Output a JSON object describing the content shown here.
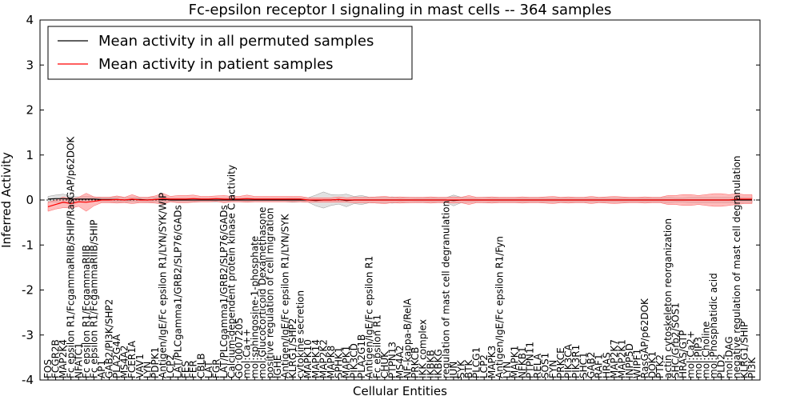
{
  "chart_data": {
    "type": "line",
    "title": "Fc-epsilon receptor I signaling in mast cells -- 364 samples",
    "xlabel": "Cellular Entities",
    "ylabel": "Inferred Activity",
    "ylim": [
      -4,
      4
    ],
    "yticks": [
      -4,
      -3,
      -2,
      -1,
      0,
      1,
      2,
      3,
      4
    ],
    "legend_position": "top-left",
    "categories": [
      "FOS",
      "FCGR2B",
      "MAP2K4",
      "Fc epsilon R1/FcgammaRIIB/SHIP/RasGAP/p62DOK",
      "NFATC1",
      "Fc epsilon R1/FcgammaRIIB",
      "Fc epsilon R1/FcgammaRIIB/SHIP",
      "AP1",
      "GAB2/PI3K/SHP2",
      "PLA2G4A",
      "MS4A2",
      "FCER1A",
      "VAV1",
      "LYN",
      "PDPK1",
      "Antigen/IgE/Fc epsilon R1/LYN/SYK/WIP",
      "LCP2",
      "LAT/PLCgamma1/GRB2/SLP76/GADs",
      "FES",
      "FER",
      "CBLB",
      "LAT",
      "FGR",
      "LAT/PLCgamma1/GRB2/SLP76/GADs",
      "Calcium-dependent protein kinase C activity",
      "GO:0007205",
      "mol:Ca++",
      "mol:sphingosine-1-phosphate",
      "mol:Glucocorticoid Dexamethasone",
      "positive regulation of cell migration",
      "IGHE",
      "Antigen/IgE/Fc epsilon R1/LYN/SYK",
      "KLRG1/SHP2",
      "cytokine secretion",
      "MAPK10",
      "MAPK14",
      "MAP2K2",
      "MAPK8",
      "SPHK1",
      "MAPK1",
      "PIK3CD",
      "PLA2G1B",
      "Antigen/IgE/Fc epsilon R1",
      "Fc epsilon R1",
      "CHUK",
      "PTPN13",
      "MS4A2",
      "NF-kappa-B/RelA",
      "PRKCB",
      "IKK complex",
      "IKBKB",
      "IKBKG",
      "regulation of mast cell degranulation",
      "JUN",
      "SYK",
      "BTK",
      "PLCG1",
      "LCP2",
      "MAPK3",
      "Antigen/IgE/Fc epsilon R1/Fyn",
      "LYN",
      "MAPK1",
      "NFKB1",
      "PTPN11",
      "RELA",
      "SOS1",
      "FYN",
      "PRKCE",
      "PIK3CA",
      "PIK3R1",
      "SHC1",
      "GAB2",
      "RAF1",
      "HRAS",
      "MAP2K7",
      "MAP2K1",
      "INPP5D",
      "WIPF1",
      "RasGAP/p62DOK",
      "DOK1",
      "PTK2",
      "actin cytoskeleton reorganization",
      "SHC/Grb2/SOS1",
      "HRAS/GTP",
      "mol:Ca2+",
      "mol:PIP3",
      "mol:Choline",
      "mol:Phosphatidic acid",
      "PLD2",
      "mol:DAG",
      "negative regulation of mast cell degranulation",
      "KLRG1/SHIP",
      "PI3K"
    ],
    "series": [
      {
        "name": "Mean activity in all permuted samples",
        "color": "#000000",
        "mean": [
          0.02,
          0.03,
          0.03,
          0.02,
          0.02,
          0.02,
          0.02,
          0.01,
          0.01,
          0.01,
          0.0,
          0.01,
          0.01,
          0.0,
          0.01,
          0.02,
          0.0,
          0.0,
          0.0,
          0.0,
          0.0,
          0.0,
          0.0,
          0.0,
          0.0,
          0.0,
          0.0,
          0.0,
          0.0,
          0.0,
          0.0,
          0.0,
          0.0,
          0.0,
          0.0,
          -0.01,
          0.0,
          0.0,
          0.01,
          -0.01,
          0.0,
          0.0,
          0.0,
          0.0,
          0.0,
          0.0,
          0.0,
          0.0,
          0.0,
          0.0,
          0.0,
          0.0,
          0.0,
          -0.01,
          0.0,
          0.0,
          0.0,
          0.0,
          0.0,
          0.0,
          0.0,
          0.0,
          0.0,
          0.0,
          0.0,
          0.0,
          0.0,
          0.0,
          0.0,
          0.0,
          0.0,
          0.0,
          0.0,
          0.0,
          0.0,
          0.0,
          0.0,
          0.0,
          0.0,
          0.0,
          0.0,
          0.0,
          0.0,
          0.0,
          0.0,
          0.0,
          0.0,
          0.0,
          0.0,
          0.0,
          0.0,
          0.0,
          0.0
        ],
        "spread": [
          0.06,
          0.08,
          0.1,
          0.06,
          0.05,
          0.06,
          0.05,
          0.05,
          0.05,
          0.06,
          0.05,
          0.05,
          0.05,
          0.05,
          0.05,
          0.07,
          0.04,
          0.04,
          0.04,
          0.04,
          0.04,
          0.04,
          0.04,
          0.04,
          0.04,
          0.04,
          0.04,
          0.04,
          0.04,
          0.04,
          0.04,
          0.04,
          0.05,
          0.04,
          0.05,
          0.12,
          0.18,
          0.12,
          0.1,
          0.14,
          0.08,
          0.1,
          0.06,
          0.07,
          0.06,
          0.07,
          0.05,
          0.06,
          0.05,
          0.05,
          0.05,
          0.05,
          0.05,
          0.12,
          0.06,
          0.05,
          0.05,
          0.06,
          0.05,
          0.05,
          0.05,
          0.05,
          0.05,
          0.05,
          0.05,
          0.05,
          0.05,
          0.05,
          0.05,
          0.05,
          0.05,
          0.05,
          0.05,
          0.05,
          0.05,
          0.05,
          0.05,
          0.05,
          0.05,
          0.05,
          0.05,
          0.06,
          0.05,
          0.05,
          0.06,
          0.06,
          0.06,
          0.06,
          0.06,
          0.06,
          0.06,
          0.06,
          0.06
        ]
      },
      {
        "name": "Mean activity in patient samples",
        "color": "#ff0000",
        "mean": [
          -0.15,
          -0.1,
          -0.05,
          -0.08,
          -0.04,
          -0.05,
          -0.03,
          0.0,
          0.0,
          0.01,
          0.0,
          0.02,
          0.0,
          0.0,
          0.01,
          0.03,
          0.02,
          0.02,
          0.02,
          0.03,
          0.02,
          0.02,
          0.03,
          0.02,
          0.02,
          0.02,
          0.03,
          0.02,
          0.02,
          0.02,
          0.02,
          0.02,
          0.02,
          0.02,
          0.0,
          0.0,
          0.0,
          0.0,
          0.01,
          0.0,
          0.0,
          0.0,
          0.0,
          0.0,
          0.0,
          0.0,
          0.0,
          0.0,
          0.0,
          0.0,
          0.0,
          0.0,
          0.0,
          0.0,
          0.0,
          0.0,
          0.0,
          0.0,
          0.0,
          0.0,
          0.0,
          0.0,
          0.0,
          0.0,
          0.0,
          0.0,
          0.0,
          0.0,
          0.0,
          0.0,
          0.0,
          0.0,
          0.0,
          0.0,
          0.0,
          0.0,
          0.0,
          0.0,
          0.0,
          0.0,
          0.0,
          0.0,
          0.0,
          0.0,
          0.0,
          0.0,
          0.0,
          0.0,
          0.0,
          0.0,
          0.02,
          0.02,
          0.02
        ],
        "spread": [
          0.1,
          0.1,
          0.12,
          0.1,
          0.1,
          0.2,
          0.1,
          0.06,
          0.06,
          0.08,
          0.06,
          0.1,
          0.06,
          0.06,
          0.08,
          0.12,
          0.06,
          0.08,
          0.08,
          0.08,
          0.06,
          0.06,
          0.06,
          0.08,
          0.06,
          0.06,
          0.08,
          0.06,
          0.06,
          0.06,
          0.06,
          0.06,
          0.06,
          0.06,
          0.05,
          0.05,
          0.05,
          0.05,
          0.06,
          0.05,
          0.06,
          0.06,
          0.06,
          0.07,
          0.08,
          0.06,
          0.07,
          0.06,
          0.06,
          0.06,
          0.07,
          0.06,
          0.06,
          0.07,
          0.06,
          0.1,
          0.06,
          0.06,
          0.07,
          0.06,
          0.06,
          0.06,
          0.07,
          0.06,
          0.06,
          0.07,
          0.08,
          0.06,
          0.07,
          0.06,
          0.06,
          0.08,
          0.06,
          0.07,
          0.08,
          0.07,
          0.06,
          0.06,
          0.07,
          0.06,
          0.06,
          0.1,
          0.1,
          0.12,
          0.12,
          0.1,
          0.12,
          0.14,
          0.14,
          0.12,
          0.12,
          0.1,
          0.1
        ]
      }
    ]
  }
}
